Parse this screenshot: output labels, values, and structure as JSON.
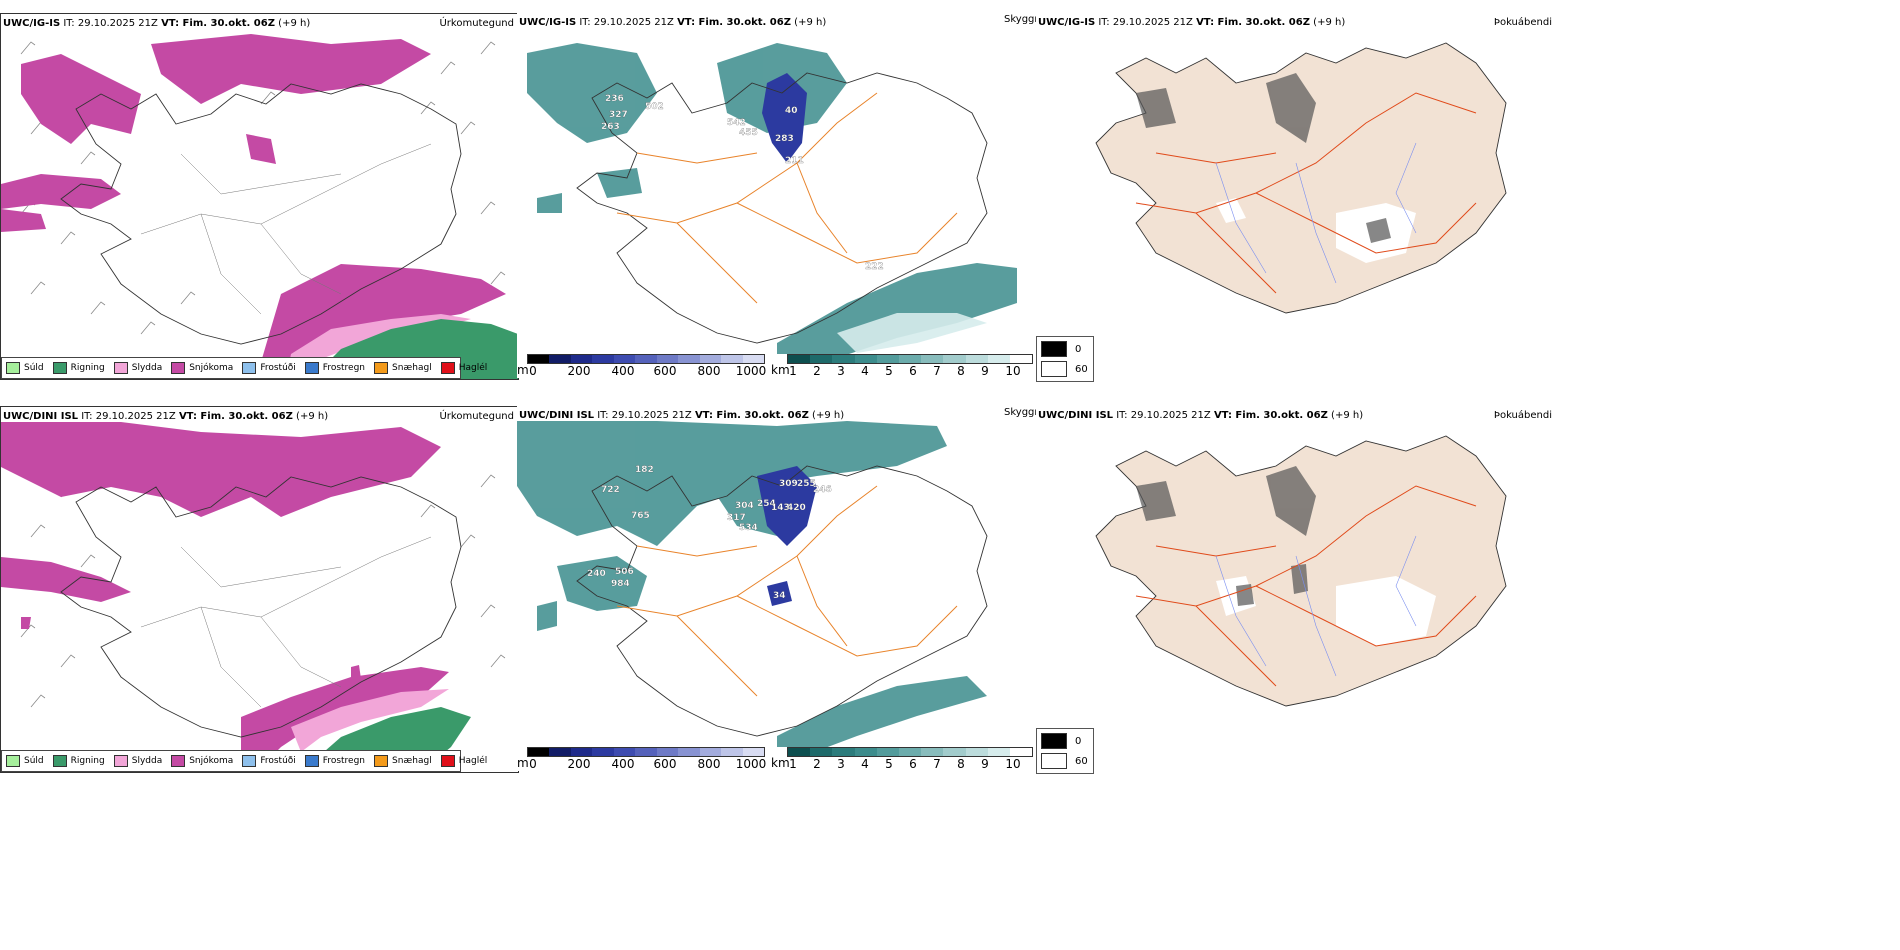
{
  "rows": [
    {
      "model": "UWC/IG-IS",
      "it": "IT: 29.10.2025 21Z",
      "vt": "VT: Fim. 30.okt. 06Z",
      "lead": "(+9 h)",
      "labels": [
        "236",
        "502",
        "327",
        "263",
        "542",
        "455",
        "283",
        "211",
        "222",
        "40"
      ]
    },
    {
      "model": "UWC/DINI ISL",
      "it": "IT: 29.10.2025 21Z",
      "vt": "VT: Fim. 30.okt. 06Z",
      "lead": "(+9 h)",
      "labels": [
        "182",
        "722",
        "765",
        "304",
        "254",
        "309",
        "255",
        "246",
        "143",
        "420",
        "317",
        "534",
        "240",
        "506",
        "984",
        "34"
      ]
    }
  ],
  "panel_titles": {
    "precip": "Úrkomutegund",
    "visibility": "Skyggni",
    "fog": "Þokuábendi"
  },
  "precip_legend": [
    {
      "label": "Súld",
      "color": "#a6ef9c"
    },
    {
      "label": "Rigning",
      "color": "#3a9a6a"
    },
    {
      "label": "Slydda",
      "color": "#f2a6d8"
    },
    {
      "label": "Snjókoma",
      "color": "#c44aa4"
    },
    {
      "label": "Frostúði",
      "color": "#8ec0ec"
    },
    {
      "label": "Frostregn",
      "color": "#3a7acc"
    },
    {
      "label": "Snæhagl",
      "color": "#f39a1a"
    },
    {
      "label": "Haglél",
      "color": "#e0101a"
    }
  ],
  "height_scale": {
    "unit": "m",
    "ticks": [
      "0",
      "200",
      "400",
      "600",
      "800",
      "1000"
    ],
    "colors": [
      "#000000",
      "#111c66",
      "#1e2a8a",
      "#2c3aa0",
      "#3e4cb0",
      "#5562bb",
      "#6e7ac6",
      "#8893d2",
      "#a3acdd",
      "#bec5e8",
      "#d8dcf2"
    ]
  },
  "km_scale": {
    "unit": "km",
    "ticks": [
      "1",
      "2",
      "3",
      "4",
      "5",
      "6",
      "7",
      "8",
      "9",
      "10"
    ],
    "colors": [
      "#0d4f4f",
      "#1e6a6a",
      "#2c7c7c",
      "#3c8c8c",
      "#539c9c",
      "#6cacac",
      "#88bcbc",
      "#a2cccc",
      "#bcdcdc",
      "#d6ecec",
      "#ffffff"
    ]
  },
  "fog_legend": [
    {
      "label": "0",
      "color": "#000000"
    },
    {
      "label": "60",
      "color": "#ffffff"
    }
  ]
}
